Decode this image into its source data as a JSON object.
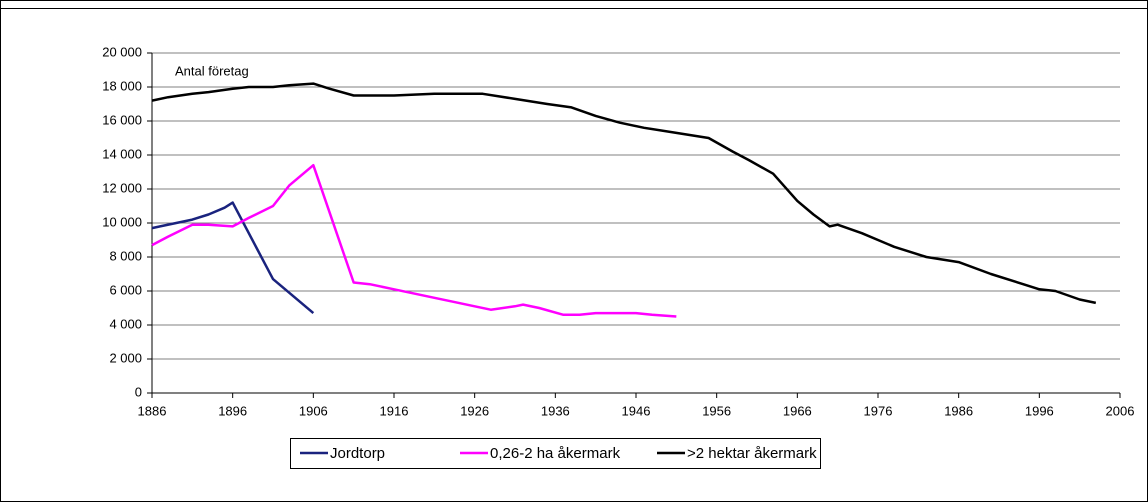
{
  "chart_data": {
    "type": "line",
    "annotation": "Antal företag",
    "xlim": [
      1886,
      2006
    ],
    "xticks": [
      1886,
      1896,
      1906,
      1916,
      1926,
      1936,
      1946,
      1956,
      1966,
      1976,
      1986,
      1996,
      2006
    ],
    "ylim": [
      0,
      20000
    ],
    "yticks": [
      0,
      {
        "value": 2000,
        "label": "2 000"
      },
      {
        "value": 4000,
        "label": "4 000"
      },
      {
        "value": 6000,
        "label": "6 000"
      },
      {
        "value": 8000,
        "label": "8 000"
      },
      {
        "value": 10000,
        "label": "10 000"
      },
      {
        "value": 12000,
        "label": "12 000"
      },
      {
        "value": 14000,
        "label": "14 000"
      },
      {
        "value": 16000,
        "label": "16 000"
      },
      {
        "value": 18000,
        "label": "18 000"
      },
      {
        "value": 20000,
        "label": "20 000"
      }
    ],
    "grid": true,
    "legend": "bottom",
    "series": [
      {
        "name": "Jordtorp",
        "color": "#1a237e",
        "x": [
          1886,
          1887,
          1889,
          1891,
          1893,
          1895,
          1896,
          1899,
          1901,
          1906
        ],
        "values": [
          9700,
          9800,
          10000,
          10200,
          10500,
          10900,
          11200,
          8500,
          6700,
          4700
        ]
      },
      {
        "name": "0,26-2 ha åkermark",
        "color": "#ff00ff",
        "x": [
          1886,
          1888,
          1891,
          1893,
          1896,
          1898,
          1901,
          1903,
          1906,
          1911,
          1913,
          1916,
          1918,
          1921,
          1923,
          1926,
          1928,
          1931,
          1932,
          1934,
          1937,
          1939,
          1941,
          1943,
          1946,
          1948,
          1951
        ],
        "values": [
          8700,
          9200,
          9900,
          9900,
          9800,
          10300,
          11000,
          12200,
          13400,
          6500,
          6400,
          6100,
          5900,
          5600,
          5400,
          5100,
          4900,
          5100,
          5200,
          5000,
          4600,
          4600,
          4700,
          4700,
          4700,
          4600,
          4500
        ]
      },
      {
        "name": ">2 hektar åkermark",
        "color": "#000000",
        "x": [
          1886,
          1888,
          1891,
          1893,
          1896,
          1898,
          1901,
          1903,
          1906,
          1908,
          1911,
          1913,
          1916,
          1921,
          1927,
          1931,
          1935,
          1938,
          1941,
          1944,
          1947,
          1951,
          1955,
          1958,
          1960,
          1963,
          1966,
          1968,
          1970,
          1971,
          1974,
          1978,
          1982,
          1986,
          1990,
          1994,
          1996,
          1998,
          2001,
          2003
        ],
        "values": [
          17200,
          17400,
          17600,
          17700,
          17900,
          18000,
          18000,
          18100,
          18200,
          17900,
          17500,
          17500,
          17500,
          17600,
          17600,
          17300,
          17000,
          16800,
          16300,
          15900,
          15600,
          15300,
          15000,
          14200,
          13700,
          12900,
          11300,
          10500,
          9800,
          9900,
          9400,
          8600,
          8000,
          7700,
          7000,
          6400,
          6100,
          6000,
          5500,
          5300
        ]
      }
    ]
  }
}
